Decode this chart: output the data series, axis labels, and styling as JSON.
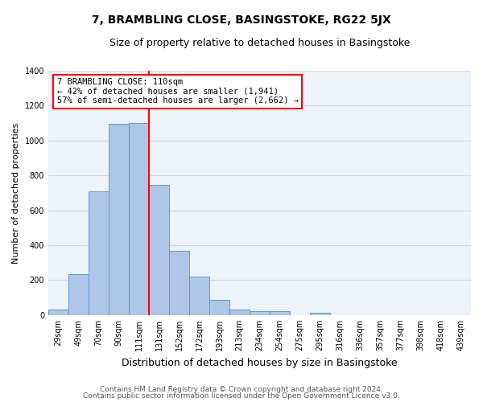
{
  "title": "7, BRAMBLING CLOSE, BASINGSTOKE, RG22 5JX",
  "subtitle": "Size of property relative to detached houses in Basingstoke",
  "xlabel": "Distribution of detached houses by size in Basingstoke",
  "ylabel": "Number of detached properties",
  "categories": [
    "29sqm",
    "49sqm",
    "70sqm",
    "90sqm",
    "111sqm",
    "131sqm",
    "152sqm",
    "172sqm",
    "193sqm",
    "213sqm",
    "234sqm",
    "254sqm",
    "275sqm",
    "295sqm",
    "316sqm",
    "336sqm",
    "357sqm",
    "377sqm",
    "398sqm",
    "418sqm",
    "439sqm"
  ],
  "values": [
    30,
    235,
    710,
    1095,
    1100,
    745,
    370,
    220,
    85,
    30,
    22,
    20,
    0,
    12,
    0,
    0,
    0,
    0,
    0,
    0,
    0
  ],
  "bar_color": "#aec6e8",
  "bar_edgecolor": "#5b9bd5",
  "annotation_text": "7 BRAMBLING CLOSE: 110sqm\n← 42% of detached houses are smaller (1,941)\n57% of semi-detached houses are larger (2,662) →",
  "annotation_box_color": "white",
  "annotation_box_edgecolor": "red",
  "vline_color": "red",
  "vline_x": 4.5,
  "ylim": [
    0,
    1400
  ],
  "yticks": [
    0,
    200,
    400,
    600,
    800,
    1000,
    1200,
    1400
  ],
  "grid_color": "#d0d8e8",
  "background_color": "#eef2f9",
  "footer_line1": "Contains HM Land Registry data © Crown copyright and database right 2024.",
  "footer_line2": "Contains public sector information licensed under the Open Government Licence v3.0.",
  "title_fontsize": 10,
  "subtitle_fontsize": 9,
  "xlabel_fontsize": 9,
  "ylabel_fontsize": 8,
  "tick_fontsize": 7,
  "footer_fontsize": 6.5,
  "ann_fontsize": 7.5
}
